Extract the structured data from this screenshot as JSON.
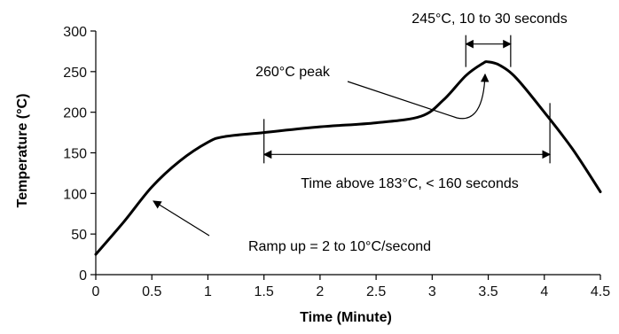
{
  "chart_data": {
    "type": "line",
    "xlabel": "Time (Minute)",
    "ylabel": "Temperature (°C)",
    "xlim": [
      0,
      4.5
    ],
    "ylim": [
      0,
      300
    ],
    "x_ticks": [
      "0",
      "0.5",
      "1",
      "1.5",
      "2",
      "2.5",
      "3",
      "3.5",
      "4",
      "4.5"
    ],
    "y_ticks": [
      "0",
      "50",
      "100",
      "150",
      "200",
      "250",
      "300"
    ],
    "grid": false,
    "series": [
      {
        "x": [
          0,
          0.25,
          0.5,
          0.75,
          1.0,
          1.15,
          1.5,
          2.0,
          2.5,
          2.9,
          3.1,
          3.3,
          3.45,
          3.5,
          3.6,
          3.75,
          4.0,
          4.25,
          4.5
        ],
        "y": [
          25,
          65,
          108,
          140,
          163,
          170,
          175,
          182,
          187,
          195,
          215,
          245,
          260,
          262,
          258,
          242,
          200,
          155,
          102
        ]
      }
    ],
    "annotations": [
      {
        "text": "245°C, 10 to 30 seconds",
        "x_from": 3.3,
        "x_to": 3.7,
        "y": 284
      },
      {
        "text": "260°C peak",
        "target_x": 3.5,
        "target_y": 262
      },
      {
        "text": "Time above 183°C, < 160 seconds",
        "x_from": 1.5,
        "x_to": 4.05,
        "y": 148
      },
      {
        "text": "Ramp up = 2 to 10°C/second",
        "target_x": 0.45,
        "target_y": 95
      }
    ]
  }
}
